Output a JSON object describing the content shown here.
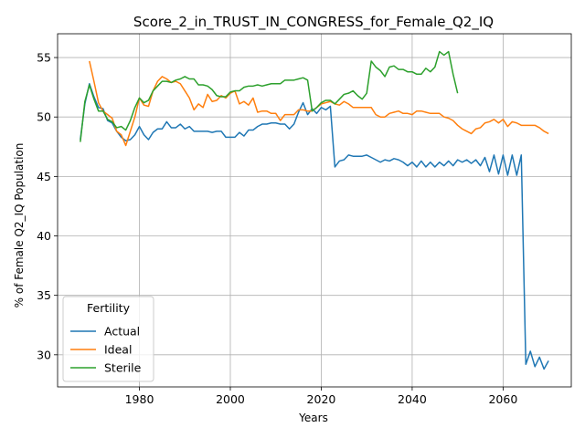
{
  "chart_data": {
    "type": "line",
    "title": "Score_2_in_TRUST_IN_CONGRESS_for_Female_Q2_IQ",
    "xlabel": "Years",
    "ylabel": "% of Female Q2_IQ Population",
    "xlim": [
      1962,
      2075
    ],
    "ylim": [
      27.3,
      57.0
    ],
    "xticks": [
      1980,
      2000,
      2020,
      2040,
      2060
    ],
    "yticks": [
      30,
      35,
      40,
      45,
      50,
      55
    ],
    "grid": true,
    "legend": {
      "title": "Fertility",
      "placement": "lower-left"
    },
    "series": [
      {
        "name": "Actual",
        "color": "#1f77b4",
        "x": [
          1967,
          1968,
          1969,
          1970,
          1971,
          1972,
          1973,
          1974,
          1975,
          1976,
          1977,
          1978,
          1979,
          1980,
          1981,
          1982,
          1983,
          1984,
          1985,
          1986,
          1987,
          1988,
          1989,
          1990,
          1991,
          1992,
          1993,
          1994,
          1995,
          1996,
          1997,
          1998,
          1999,
          2000,
          2001,
          2002,
          2003,
          2004,
          2005,
          2006,
          2007,
          2008,
          2009,
          2010,
          2011,
          2012,
          2013,
          2014,
          2015,
          2016,
          2017,
          2018,
          2019,
          2020,
          2021,
          2022,
          2023,
          2024,
          2025,
          2026,
          2027,
          2028,
          2029,
          2030,
          2031,
          2032,
          2033,
          2034,
          2035,
          2036,
          2037,
          2038,
          2039,
          2040,
          2041,
          2042,
          2043,
          2044,
          2045,
          2046,
          2047,
          2048,
          2049,
          2050,
          2051,
          2052,
          2053,
          2054,
          2055,
          2056,
          2057,
          2058,
          2059,
          2060,
          2061,
          2062,
          2063,
          2064,
          2065,
          2066,
          2067,
          2068,
          2069,
          2070
        ],
        "values": [
          48.1,
          51.1,
          52.8,
          51.7,
          50.8,
          50.7,
          49.7,
          49.5,
          48.8,
          48.3,
          48.0,
          48.1,
          48.5,
          49.2,
          48.5,
          48.1,
          48.7,
          49.0,
          49.0,
          49.6,
          49.1,
          49.1,
          49.4,
          49.0,
          49.2,
          48.8,
          48.8,
          48.8,
          48.8,
          48.7,
          48.8,
          48.8,
          48.3,
          48.3,
          48.3,
          48.7,
          48.4,
          48.9,
          48.9,
          49.2,
          49.4,
          49.4,
          49.5,
          49.5,
          49.4,
          49.4,
          49.0,
          49.4,
          50.4,
          51.2,
          50.2,
          50.7,
          50.3,
          50.8,
          50.6,
          50.9,
          45.8,
          46.3,
          46.4,
          46.8,
          46.7,
          46.7,
          46.7,
          46.8,
          46.6,
          46.4,
          46.2,
          46.4,
          46.3,
          46.5,
          46.4,
          46.2,
          45.9,
          46.2,
          45.8,
          46.3,
          45.8,
          46.2,
          45.8,
          46.2,
          45.9,
          46.3,
          45.9,
          46.4,
          46.2,
          46.4,
          46.1,
          46.4,
          45.9,
          46.6,
          45.4,
          46.8,
          45.2,
          46.8,
          45.1,
          46.8,
          45.1,
          46.8,
          29.2,
          30.3,
          29.0,
          29.8,
          28.8,
          29.5
        ]
      },
      {
        "name": "Ideal",
        "color": "#ff7f0e",
        "x": [
          1969,
          1970,
          1971,
          1972,
          1973,
          1974,
          1975,
          1976,
          1977,
          1978,
          1979,
          1980,
          1981,
          1982,
          1983,
          1984,
          1985,
          1986,
          1987,
          1988,
          1989,
          1990,
          1991,
          1992,
          1993,
          1994,
          1995,
          1996,
          1997,
          1998,
          1999,
          2000,
          2001,
          2002,
          2003,
          2004,
          2005,
          2006,
          2007,
          2008,
          2009,
          2010,
          2011,
          2012,
          2013,
          2014,
          2015,
          2016,
          2017,
          2018,
          2019,
          2020,
          2021,
          2022,
          2023,
          2024,
          2025,
          2026,
          2027,
          2028,
          2029,
          2030,
          2031,
          2032,
          2033,
          2034,
          2035,
          2036,
          2037,
          2038,
          2039,
          2040,
          2041,
          2042,
          2043,
          2044,
          2045,
          2046,
          2047,
          2048,
          2049,
          2050,
          2051,
          2052,
          2053,
          2054,
          2055,
          2056,
          2057,
          2058,
          2059,
          2060,
          2061,
          2062,
          2063,
          2064,
          2065,
          2066,
          2067,
          2068,
          2069,
          2070
        ],
        "values": [
          54.7,
          53.0,
          51.2,
          50.5,
          50.2,
          49.9,
          48.8,
          48.5,
          47.6,
          48.8,
          50.0,
          51.6,
          51.0,
          50.9,
          52.2,
          53.0,
          53.4,
          53.2,
          52.9,
          53.0,
          52.8,
          52.2,
          51.6,
          50.6,
          51.1,
          50.8,
          51.9,
          51.3,
          51.4,
          51.8,
          51.6,
          52.0,
          52.2,
          51.1,
          51.3,
          51.0,
          51.6,
          50.4,
          50.5,
          50.5,
          50.3,
          50.3,
          49.7,
          50.2,
          50.2,
          50.2,
          50.6,
          50.6,
          50.5,
          50.5,
          50.8,
          51.1,
          51.2,
          51.3,
          51.1,
          51.0,
          51.3,
          51.1,
          50.8,
          50.8,
          50.8,
          50.8,
          50.8,
          50.2,
          50.0,
          50.0,
          50.3,
          50.4,
          50.5,
          50.3,
          50.3,
          50.2,
          50.5,
          50.5,
          50.4,
          50.3,
          50.3,
          50.3,
          50.0,
          49.9,
          49.7,
          49.3,
          49.0,
          48.8,
          48.6,
          49.0,
          49.1,
          49.5,
          49.6,
          49.8,
          49.5,
          49.8,
          49.2,
          49.6,
          49.5,
          49.3,
          49.3,
          49.3,
          49.3,
          49.1,
          48.8,
          48.6
        ]
      },
      {
        "name": "Sterile",
        "color": "#2ca02c",
        "x": [
          1967,
          1968,
          1969,
          1970,
          1971,
          1972,
          1973,
          1974,
          1975,
          1976,
          1977,
          1978,
          1979,
          1980,
          1981,
          1982,
          1983,
          1984,
          1985,
          1986,
          1987,
          1988,
          1989,
          1990,
          1991,
          1992,
          1993,
          1994,
          1995,
          1996,
          1997,
          1998,
          1999,
          2000,
          2001,
          2002,
          2003,
          2004,
          2005,
          2006,
          2007,
          2008,
          2009,
          2010,
          2011,
          2012,
          2013,
          2014,
          2015,
          2016,
          2017,
          2018,
          2019,
          2020,
          2021,
          2022,
          2023,
          2024,
          2025,
          2026,
          2027,
          2028,
          2029,
          2030,
          2031,
          2032,
          2033,
          2034,
          2035,
          2036,
          2037,
          2038,
          2039,
          2040,
          2041,
          2042,
          2043,
          2044,
          2045,
          2046,
          2047,
          2048,
          2049,
          2050
        ],
        "values": [
          47.9,
          51.3,
          52.7,
          51.5,
          50.5,
          50.5,
          49.8,
          49.6,
          49.1,
          49.2,
          48.9,
          49.7,
          50.8,
          51.6,
          51.2,
          51.4,
          52.2,
          52.6,
          53.0,
          53.0,
          52.9,
          53.1,
          53.2,
          53.4,
          53.2,
          53.2,
          52.7,
          52.7,
          52.6,
          52.3,
          51.8,
          51.7,
          51.7,
          52.1,
          52.2,
          52.2,
          52.5,
          52.6,
          52.6,
          52.7,
          52.6,
          52.7,
          52.8,
          52.8,
          52.8,
          53.1,
          53.1,
          53.1,
          53.2,
          53.3,
          53.1,
          50.5,
          50.8,
          51.2,
          51.4,
          51.4,
          51.1,
          51.5,
          51.9,
          52.0,
          52.2,
          51.8,
          51.5,
          52.0,
          54.7,
          54.2,
          53.9,
          53.4,
          54.2,
          54.3,
          54.0,
          54.0,
          53.8,
          53.8,
          53.6,
          53.6,
          54.1,
          53.8,
          54.2,
          55.5,
          55.2,
          55.5,
          53.6,
          52.0
        ]
      }
    ]
  }
}
